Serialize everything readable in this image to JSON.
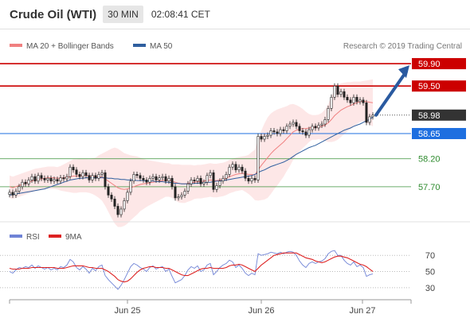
{
  "header": {
    "instrument": "Crude Oil (WTI)",
    "timeframe": "30 MIN",
    "clock": "02:08:41 CET"
  },
  "legend": {
    "ma20_label": "MA 20 + Bollinger Bands",
    "ma50_label": "MA 50",
    "credit": "Research © 2019 Trading Central",
    "ma20_color": "#f08080",
    "ma50_color": "#2f5f9f"
  },
  "rsi_legend": {
    "rsi_label": "RSI",
    "ma_label": "9MA",
    "rsi_color": "#6f83d6",
    "ma_color": "#dd2222"
  },
  "chart_data": [
    {
      "type": "candlestick",
      "ylim": [
        57.2,
        60.1
      ],
      "x_labels": [
        "Jun 25",
        "Jun 26",
        "Jun 27"
      ],
      "levels": [
        {
          "value": 59.9,
          "label": "59.90",
          "kind": "resistance",
          "color": "#cc0000"
        },
        {
          "value": 59.5,
          "label": "59.50",
          "kind": "resistance",
          "color": "#cc0000"
        },
        {
          "value": 58.98,
          "label": "58.98",
          "kind": "last",
          "color": "#333333"
        },
        {
          "value": 58.65,
          "label": "58.65",
          "kind": "pivot",
          "color": "#1e6fe0"
        },
        {
          "value": 58.2,
          "label": "58.20",
          "kind": "support",
          "color": "#2e8b2e"
        },
        {
          "value": 57.7,
          "label": "57.70",
          "kind": "support",
          "color": "#2e8b2e"
        }
      ],
      "close": [
        57.6,
        57.55,
        57.62,
        57.7,
        57.78,
        57.75,
        57.82,
        57.88,
        57.8,
        57.9,
        57.85,
        57.82,
        57.85,
        57.8,
        57.83,
        57.8,
        57.86,
        57.84,
        57.88,
        58.05,
        58.0,
        57.92,
        57.88,
        57.95,
        57.9,
        57.82,
        57.9,
        57.85,
        57.92,
        57.95,
        57.7,
        57.55,
        57.48,
        57.35,
        57.2,
        57.3,
        57.45,
        57.6,
        57.8,
        57.92,
        57.9,
        57.85,
        57.82,
        57.78,
        57.85,
        57.88,
        57.82,
        57.86,
        57.88,
        57.8,
        57.85,
        57.7,
        57.5,
        57.52,
        57.55,
        57.62,
        57.75,
        57.82,
        57.8,
        57.85,
        57.75,
        57.78,
        57.9,
        57.95,
        57.65,
        57.72,
        57.8,
        57.85,
        57.92,
        58.05,
        58.1,
        58.0,
        58.05,
        57.98,
        57.85,
        57.8,
        57.85,
        57.82,
        58.6,
        58.55,
        58.6,
        58.62,
        58.7,
        58.68,
        58.65,
        58.72,
        58.7,
        58.78,
        58.82,
        58.85,
        58.78,
        58.7,
        58.68,
        58.62,
        58.72,
        58.78,
        58.75,
        58.8,
        58.82,
        58.9,
        59.1,
        59.3,
        59.5,
        59.35,
        59.4,
        59.3,
        59.25,
        59.2,
        59.3,
        59.22,
        59.25,
        59.2,
        58.85,
        58.95,
        58.98
      ],
      "ma20": [
        57.7,
        57.68,
        57.7,
        57.72,
        57.74,
        57.76,
        57.78,
        57.8,
        57.82,
        57.83,
        57.84,
        57.85,
        57.86,
        57.86,
        57.86,
        57.85,
        57.85,
        57.86,
        57.87,
        57.88,
        57.89,
        57.89,
        57.9,
        57.9,
        57.9,
        57.89,
        57.89,
        57.88,
        57.88,
        57.87,
        57.84,
        57.8,
        57.76,
        57.72,
        57.68,
        57.66,
        57.65,
        57.66,
        57.68,
        57.7,
        57.72,
        57.74,
        57.75,
        57.76,
        57.77,
        57.78,
        57.79,
        57.8,
        57.81,
        57.82,
        57.82,
        57.8,
        57.78,
        57.76,
        57.75,
        57.75,
        57.76,
        57.77,
        57.78,
        57.79,
        57.79,
        57.8,
        57.81,
        57.82,
        57.81,
        57.81,
        57.82,
        57.83,
        57.85,
        57.88,
        57.9,
        57.92,
        57.93,
        57.94,
        57.93,
        57.92,
        57.92,
        57.91,
        58.0,
        58.08,
        58.15,
        58.22,
        58.29,
        58.35,
        58.4,
        58.45,
        58.5,
        58.56,
        58.62,
        58.68,
        58.71,
        58.73,
        58.74,
        58.74,
        58.75,
        58.76,
        58.76,
        58.77,
        58.78,
        58.8,
        58.84,
        58.9,
        58.97,
        59.02,
        59.07,
        59.1,
        59.13,
        59.15,
        59.18,
        59.2,
        59.22,
        59.23,
        59.22,
        59.21,
        59.2
      ],
      "bb_width": [
        0.2,
        0.2,
        0.2,
        0.2,
        0.2,
        0.2,
        0.2,
        0.2,
        0.2,
        0.2,
        0.2,
        0.2,
        0.2,
        0.2,
        0.2,
        0.2,
        0.22,
        0.24,
        0.26,
        0.28,
        0.3,
        0.3,
        0.3,
        0.3,
        0.3,
        0.3,
        0.32,
        0.34,
        0.38,
        0.42,
        0.48,
        0.55,
        0.62,
        0.68,
        0.7,
        0.68,
        0.65,
        0.62,
        0.58,
        0.55,
        0.52,
        0.48,
        0.45,
        0.42,
        0.4,
        0.38,
        0.36,
        0.34,
        0.32,
        0.3,
        0.3,
        0.3,
        0.32,
        0.34,
        0.34,
        0.34,
        0.33,
        0.32,
        0.3,
        0.3,
        0.3,
        0.3,
        0.3,
        0.3,
        0.3,
        0.3,
        0.3,
        0.3,
        0.3,
        0.3,
        0.3,
        0.3,
        0.3,
        0.3,
        0.32,
        0.35,
        0.4,
        0.45,
        0.55,
        0.62,
        0.68,
        0.72,
        0.72,
        0.7,
        0.68,
        0.65,
        0.62,
        0.58,
        0.55,
        0.5,
        0.45,
        0.4,
        0.35,
        0.3,
        0.25,
        0.22,
        0.22,
        0.22,
        0.24,
        0.28,
        0.34,
        0.4,
        0.46,
        0.48,
        0.48,
        0.46,
        0.44,
        0.42,
        0.4,
        0.38,
        0.36,
        0.36,
        0.38,
        0.4,
        0.42
      ],
      "ma50": [
        57.55,
        57.56,
        57.57,
        57.58,
        57.59,
        57.6,
        57.61,
        57.62,
        57.63,
        57.64,
        57.65,
        57.66,
        57.68,
        57.7,
        57.72,
        57.74,
        57.76,
        57.78,
        57.8,
        57.82,
        57.83,
        57.84,
        57.85,
        57.85,
        57.86,
        57.86,
        57.86,
        57.86,
        57.86,
        57.86,
        57.86,
        57.85,
        57.85,
        57.84,
        57.84,
        57.83,
        57.83,
        57.82,
        57.82,
        57.82,
        57.81,
        57.81,
        57.81,
        57.8,
        57.8,
        57.8,
        57.79,
        57.79,
        57.79,
        57.78,
        57.78,
        57.77,
        57.76,
        57.76,
        57.75,
        57.75,
        57.75,
        57.75,
        57.76,
        57.76,
        57.77,
        57.77,
        57.78,
        57.78,
        57.79,
        57.8,
        57.8,
        57.81,
        57.82,
        57.83,
        57.84,
        57.85,
        57.86,
        57.87,
        57.88,
        57.89,
        57.9,
        57.92,
        57.95,
        57.98,
        58.0,
        58.03,
        58.06,
        58.08,
        58.1,
        58.12,
        58.14,
        58.17,
        58.2,
        58.24,
        58.28,
        58.31,
        58.34,
        58.37,
        58.4,
        58.42,
        58.44,
        58.47,
        58.5,
        58.53,
        58.56,
        58.59,
        58.62,
        58.65,
        58.68,
        58.71,
        58.73,
        58.75,
        58.78,
        58.8,
        58.82,
        58.85,
        58.88,
        58.9,
        58.95
      ]
    },
    {
      "type": "line",
      "ylim": [
        20,
        85
      ],
      "y_ticks": [
        70,
        50,
        30
      ],
      "series": [
        {
          "name": "RSI",
          "values": [
            50,
            48,
            52,
            55,
            54,
            56,
            55,
            58,
            54,
            57,
            55,
            53,
            55,
            52,
            54,
            52,
            56,
            55,
            58,
            65,
            62,
            55,
            52,
            56,
            53,
            48,
            54,
            51,
            56,
            58,
            45,
            40,
            36,
            32,
            28,
            33,
            40,
            48,
            56,
            60,
            58,
            55,
            53,
            50,
            55,
            57,
            53,
            55,
            56,
            50,
            53,
            44,
            36,
            38,
            40,
            45,
            52,
            56,
            54,
            57,
            50,
            52,
            58,
            60,
            46,
            50,
            55,
            58,
            60,
            64,
            62,
            55,
            58,
            54,
            48,
            45,
            48,
            46,
            72,
            70,
            71,
            72,
            74,
            73,
            72,
            74,
            72,
            74,
            75,
            74,
            70,
            63,
            58,
            55,
            60,
            62,
            60,
            62,
            63,
            66,
            72,
            75,
            76,
            70,
            70,
            64,
            60,
            58,
            62,
            56,
            58,
            55,
            44,
            46,
            47
          ]
        },
        {
          "name": "9MA",
          "values": [
            54,
            53,
            53,
            53,
            54,
            54,
            54,
            55,
            55,
            55,
            55,
            55,
            55,
            55,
            55,
            54,
            54,
            54,
            55,
            56,
            57,
            57,
            57,
            57,
            56,
            55,
            55,
            54,
            54,
            54,
            52,
            50,
            47,
            44,
            40,
            38,
            37,
            38,
            41,
            45,
            49,
            52,
            54,
            55,
            56,
            56,
            55,
            55,
            55,
            54,
            54,
            52,
            50,
            48,
            46,
            45,
            45,
            47,
            49,
            51,
            53,
            54,
            54,
            55,
            54,
            54,
            54,
            54,
            55,
            57,
            58,
            58,
            59,
            58,
            56,
            54,
            52,
            50,
            54,
            58,
            61,
            64,
            67,
            70,
            71,
            72,
            73,
            73,
            73,
            73,
            73,
            71,
            69,
            67,
            66,
            65,
            63,
            62,
            61,
            62,
            64,
            66,
            68,
            69,
            69,
            68,
            67,
            65,
            63,
            61,
            59,
            58,
            56,
            53,
            50
          ]
        }
      ]
    }
  ]
}
